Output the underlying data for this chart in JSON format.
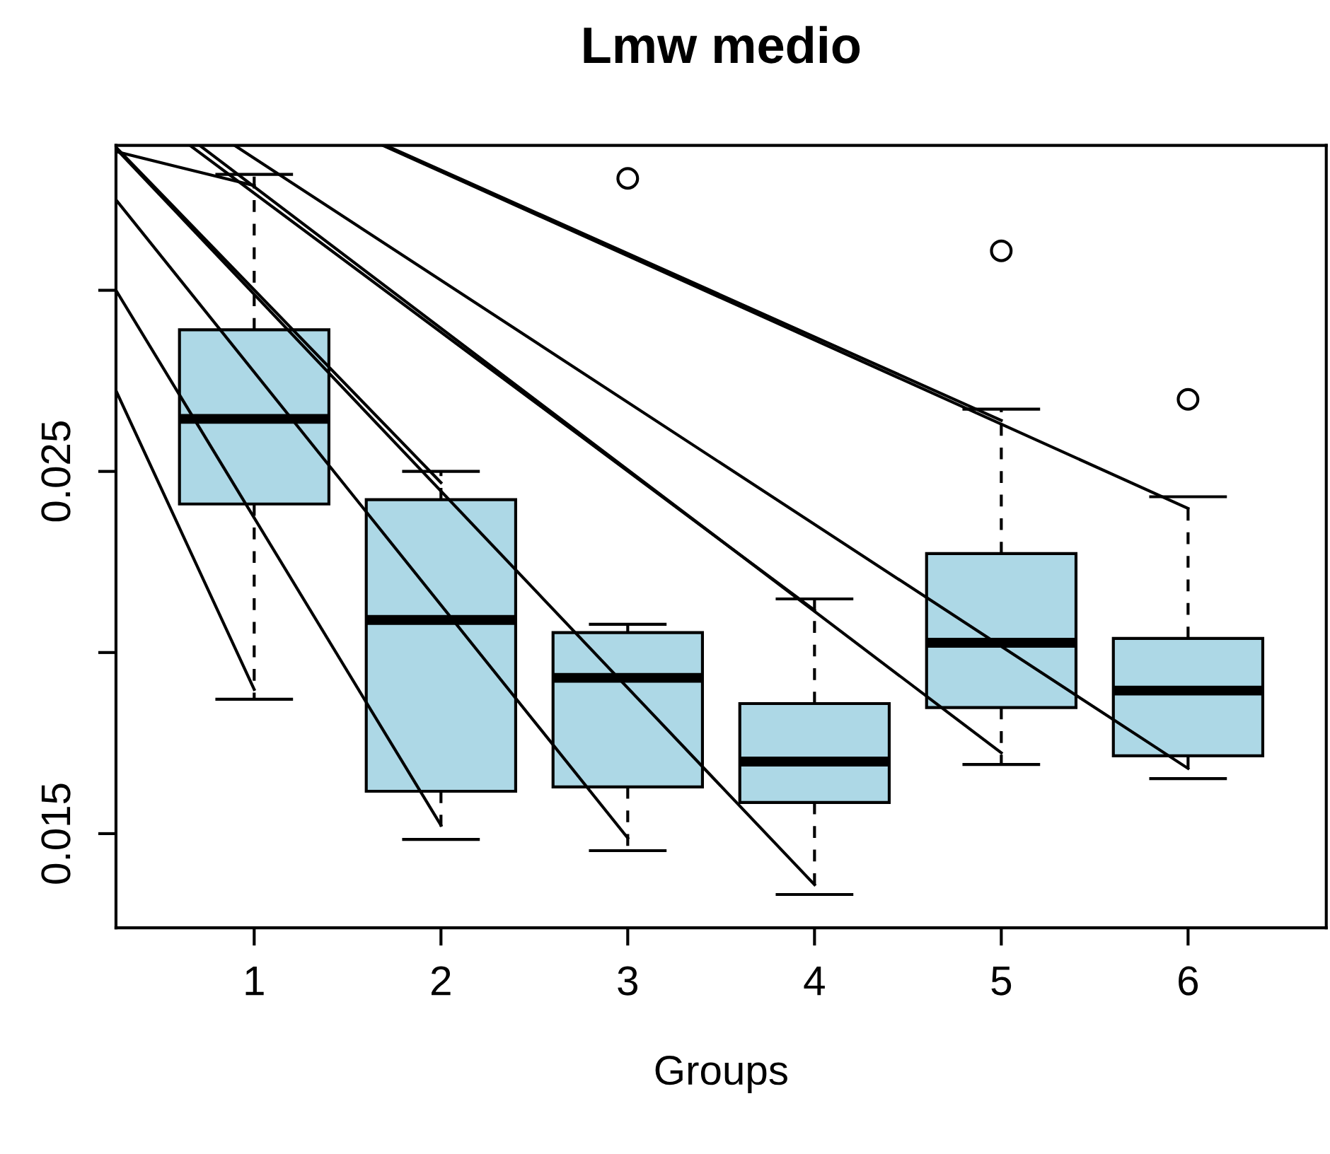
{
  "chart_data": {
    "type": "box",
    "title": "Lmw medio",
    "xlabel": "Groups",
    "x": [
      1,
      2,
      3,
      4,
      5,
      6
    ],
    "xticks": [
      1,
      2,
      3,
      4,
      5,
      6
    ],
    "color": "#add8e6",
    "boxes": [
      {
        "low": 0.01871,
        "q1": 0.0241,
        "median": 0.02645,
        "q3": 0.02891,
        "high": 0.0332
      },
      {
        "low": 0.01484,
        "q1": 0.01617,
        "median": 0.0209,
        "q3": 0.02422,
        "high": 0.025
      },
      {
        "low": 0.01453,
        "q1": 0.01629,
        "median": 0.0193,
        "q3": 0.02055,
        "high": 0.02078,
        "outliers": [
          0.03309
        ]
      },
      {
        "low": 0.01332,
        "q1": 0.01586,
        "median": 0.01699,
        "q3": 0.01859,
        "high": 0.02148
      },
      {
        "low": 0.01691,
        "q1": 0.01848,
        "median": 0.02027,
        "q3": 0.02273,
        "high": 0.02672,
        "outliers": [
          0.03109
        ]
      },
      {
        "low": 0.01652,
        "q1": 0.01715,
        "median": 0.01895,
        "q3": 0.02039,
        "high": 0.0243,
        "outliers": [
          0.02699
        ]
      }
    ],
    "series": [
      {
        "type": "line",
        "color": "#000000",
        "x": [
          0.26,
          1
        ],
        "values": [
          0.03383,
          0.03289
        ]
      },
      {
        "type": "line",
        "color": "#000000",
        "x": [
          0.26,
          1
        ],
        "values": [
          0.02723,
          0.01898
        ]
      },
      {
        "type": "line",
        "color": "#000000",
        "x": [
          0.26,
          2
        ],
        "values": [
          0.03,
          0.01523
        ]
      },
      {
        "type": "line",
        "color": "#000000",
        "x": [
          0.26,
          2
        ],
        "values": [
          0.03395,
          0.02469
        ]
      },
      {
        "type": "line",
        "color": "#000000",
        "x": [
          0.26,
          3
        ],
        "values": [
          0.0325,
          0.01488
        ]
      },
      {
        "type": "line",
        "color": "#000000",
        "x": [
          0.26,
          4
        ],
        "values": [
          0.03391,
          0.01359
        ]
      },
      {
        "type": "line",
        "color": "#000000",
        "x": [
          0.656,
          4
        ],
        "values": [
          0.034,
          0.02117
        ]
      },
      {
        "type": "line",
        "color": "#000000",
        "x": [
          0.708,
          5
        ],
        "values": [
          0.034,
          0.01723
        ]
      },
      {
        "type": "line",
        "color": "#000000",
        "x": [
          0.895,
          6
        ],
        "values": [
          0.034,
          0.0168
        ]
      },
      {
        "type": "line",
        "color": "#000000",
        "x": [
          1.704,
          5
        ],
        "values": [
          0.034,
          0.02641
        ]
      },
      {
        "type": "line",
        "color": "#000000",
        "x": [
          1.689,
          6
        ],
        "values": [
          0.034,
          0.02398
        ]
      }
    ],
    "xlim": [
      0.26,
      6.74
    ],
    "ylim": [
      0.0124,
      0.034
    ],
    "yticks": [
      0.015,
      {
        "value": 0.02,
        "label": null
      },
      0.025,
      {
        "value": 0.03,
        "label": null
      }
    ]
  }
}
